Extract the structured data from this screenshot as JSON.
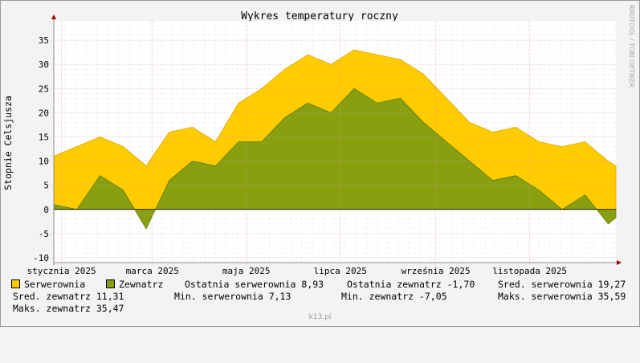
{
  "chart_data": {
    "type": "area",
    "title": "Wykres temperatury roczny",
    "ylabel": "Stopnie Celsjusza",
    "watermark": "RRDTOOL / TOBI OETIKER",
    "ylim": [
      -11,
      39
    ],
    "y_ticks": [
      -10,
      -5,
      0,
      5,
      10,
      15,
      20,
      25,
      30,
      35
    ],
    "x_ticks": [
      "stycznia 2025",
      "marca 2025",
      "maja 2025",
      "lipca 2025",
      "września 2025",
      "listopada 2025"
    ],
    "x_tick_dates": [
      "2025-01-01",
      "2025-03-01",
      "2025-05-01",
      "2025-07-01",
      "2025-09-01",
      "2025-11-01"
    ],
    "x_range": [
      "2024-12-27",
      "2025-12-27"
    ],
    "grid": true,
    "series": [
      {
        "name": "Serwerownia",
        "color": "#ffcc00",
        "x": [
          "2024-12-27",
          "2025-01-11",
          "2025-01-26",
          "2025-02-10",
          "2025-02-25",
          "2025-03-12",
          "2025-03-27",
          "2025-04-11",
          "2025-04-26",
          "2025-05-11",
          "2025-05-26",
          "2025-06-10",
          "2025-06-25",
          "2025-07-10",
          "2025-07-25",
          "2025-08-09",
          "2025-08-24",
          "2025-09-08",
          "2025-09-23",
          "2025-10-08",
          "2025-10-23",
          "2025-11-07",
          "2025-11-22",
          "2025-12-07",
          "2025-12-22",
          "2025-12-27"
        ],
        "values": [
          11,
          13,
          15,
          13,
          9,
          16,
          17,
          14,
          22,
          25,
          29,
          32,
          30,
          33,
          32,
          31,
          28,
          23,
          18,
          16,
          17,
          14,
          13,
          14,
          10,
          9
        ]
      },
      {
        "name": "Zewnatrz",
        "color": "#88a010",
        "x": [
          "2024-12-27",
          "2025-01-11",
          "2025-01-26",
          "2025-02-10",
          "2025-02-25",
          "2025-03-12",
          "2025-03-27",
          "2025-04-11",
          "2025-04-26",
          "2025-05-11",
          "2025-05-26",
          "2025-06-10",
          "2025-06-25",
          "2025-07-10",
          "2025-07-25",
          "2025-08-09",
          "2025-08-24",
          "2025-09-08",
          "2025-09-23",
          "2025-10-08",
          "2025-10-23",
          "2025-11-07",
          "2025-11-22",
          "2025-12-07",
          "2025-12-22",
          "2025-12-27"
        ],
        "values": [
          1,
          0,
          7,
          4,
          -4,
          6,
          10,
          9,
          14,
          14,
          19,
          22,
          20,
          25,
          22,
          23,
          18,
          14,
          10,
          6,
          7,
          4,
          0,
          3,
          -3,
          -1.7
        ]
      }
    ]
  },
  "legend": {
    "row1": {
      "serwerownia": "Serwerownia",
      "zewnatrz": "Zewnatrz",
      "ost_serw": "Ostatnia serwerownia 8,93",
      "ost_zewn": "Ostatnia zewnatrz -1,70",
      "sred_serw": "Sred. serwerownia 19,27"
    },
    "row2": {
      "sred_zewn": "Sred. zewnatrz 11,31",
      "min_serw": "Min. serwerownia 7,13",
      "min_zewn": "Min. zewnatrz -7,05",
      "maks_serw": "Maks. serwerownia 35,59"
    },
    "row3": {
      "maks_zewn": "Maks. zewnatrz 35,47"
    }
  },
  "footer": "k13.pl"
}
